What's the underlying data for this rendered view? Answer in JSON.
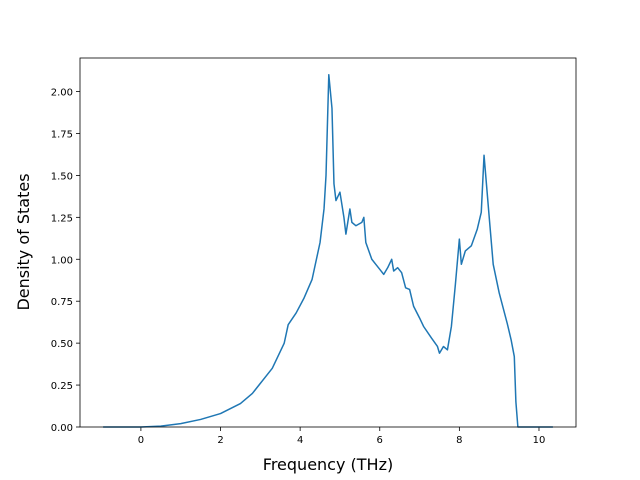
{
  "chart_data": {
    "type": "line",
    "xlabel": "Frequency (THz)",
    "ylabel": "Density of States",
    "xlim": [
      -1.53,
      10.93
    ],
    "ylim": [
      0,
      2.2
    ],
    "xticks": [
      0,
      2,
      4,
      6,
      8,
      10
    ],
    "yticks": [
      {
        "value": 0,
        "label": "0.00"
      },
      {
        "value": 0.25,
        "label": "0.25"
      },
      {
        "value": 0.5,
        "label": "0.50"
      },
      {
        "value": 0.75,
        "label": "0.75"
      },
      {
        "value": 1,
        "label": "1.00"
      },
      {
        "value": 1.25,
        "label": "1.25"
      },
      {
        "value": 1.5,
        "label": "1.50"
      },
      {
        "value": 1.75,
        "label": "1.75"
      },
      {
        "value": 2,
        "label": "2.00"
      }
    ],
    "series": [
      {
        "color": "#1f77b4",
        "x": [
          -0.95,
          0,
          0.5,
          1,
          1.5,
          2,
          2.5,
          2.8,
          3,
          3.3,
          3.5,
          3.6,
          3.7,
          3.9,
          4.1,
          4.3,
          4.5,
          4.6,
          4.65,
          4.72,
          4.8,
          4.85,
          4.9,
          5.0,
          5.1,
          5.15,
          5.25,
          5.3,
          5.4,
          5.55,
          5.6,
          5.65,
          5.8,
          5.9,
          6.0,
          6.1,
          6.2,
          6.3,
          6.35,
          6.45,
          6.55,
          6.65,
          6.75,
          6.85,
          7.0,
          7.1,
          7.3,
          7.45,
          7.5,
          7.6,
          7.7,
          7.8,
          7.9,
          8.0,
          8.05,
          8.15,
          8.3,
          8.45,
          8.55,
          8.62,
          8.75,
          8.85,
          9.0,
          9.2,
          9.3,
          9.38,
          9.42,
          9.47,
          10.35
        ],
        "values": [
          0,
          0,
          0.005,
          0.02,
          0.045,
          0.08,
          0.14,
          0.2,
          0.26,
          0.35,
          0.45,
          0.5,
          0.61,
          0.68,
          0.77,
          0.88,
          1.1,
          1.3,
          1.5,
          2.1,
          1.9,
          1.45,
          1.35,
          1.4,
          1.25,
          1.15,
          1.3,
          1.22,
          1.2,
          1.22,
          1.25,
          1.1,
          1.0,
          0.97,
          0.94,
          0.91,
          0.95,
          1.0,
          0.93,
          0.95,
          0.92,
          0.83,
          0.82,
          0.72,
          0.65,
          0.6,
          0.53,
          0.48,
          0.44,
          0.48,
          0.46,
          0.6,
          0.85,
          1.12,
          0.97,
          1.05,
          1.08,
          1.18,
          1.28,
          1.62,
          1.25,
          0.97,
          0.8,
          0.62,
          0.52,
          0.42,
          0.15,
          0,
          0
        ]
      }
    ]
  }
}
